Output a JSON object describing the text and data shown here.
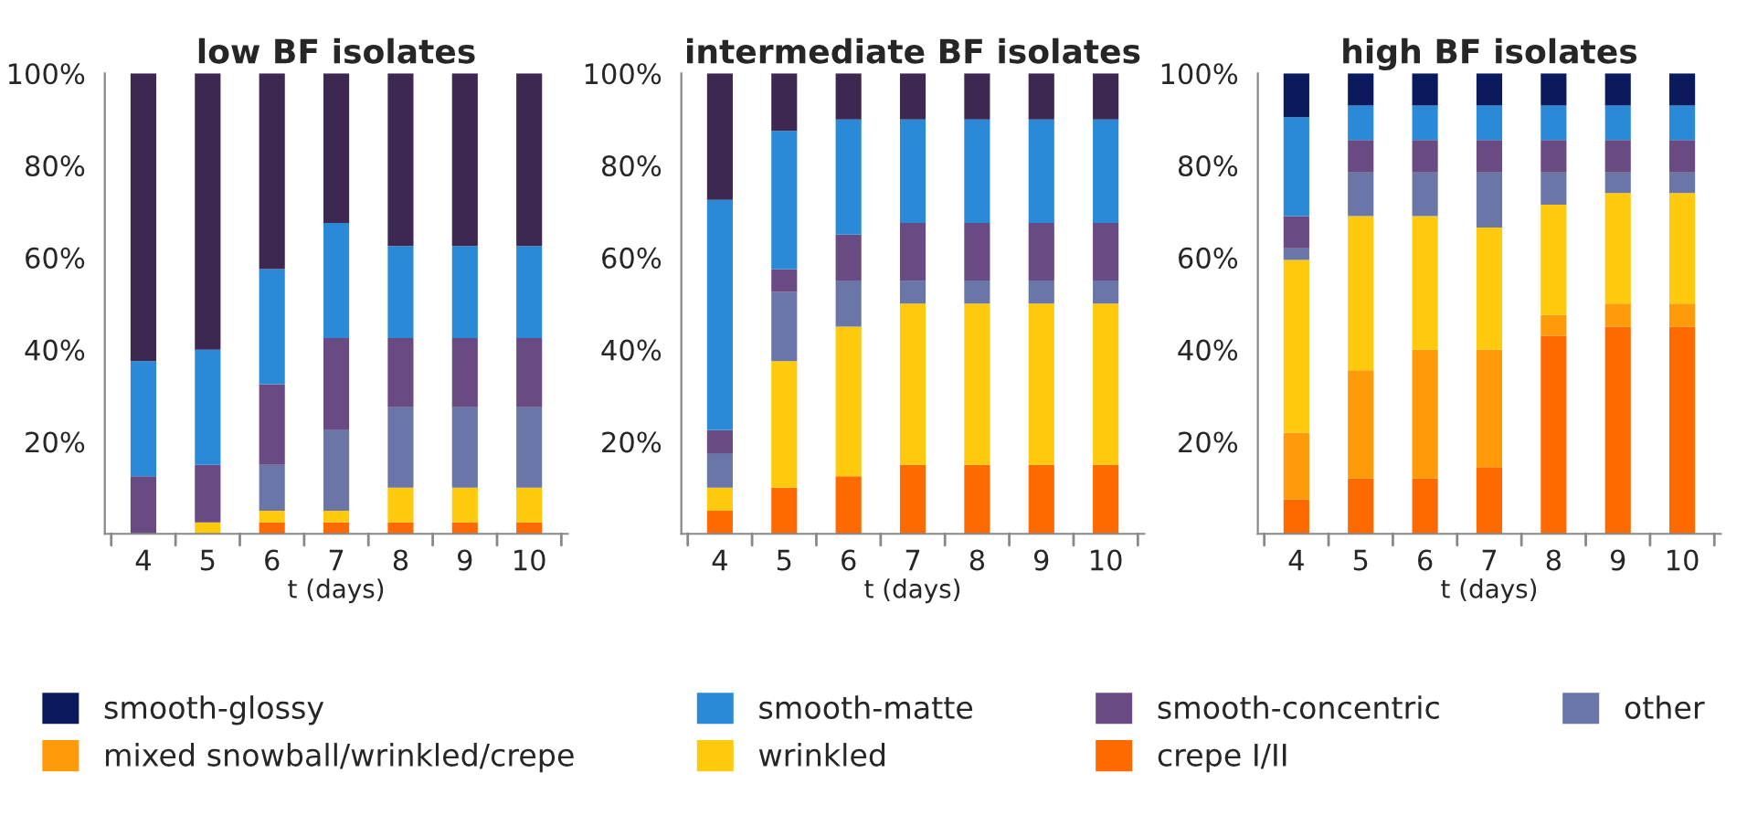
{
  "chart_data": [
    {
      "type": "bar",
      "title": "low BF isolates",
      "xlabel": "t (days)",
      "categories": [
        "4",
        "5",
        "6",
        "7",
        "8",
        "9",
        "10"
      ],
      "stacked": true,
      "ylim": [
        0,
        100
      ],
      "yticks": [
        {
          "value": 0,
          "label": null
        },
        {
          "value": 20,
          "label": "20%"
        },
        {
          "value": 40,
          "label": "40%"
        },
        {
          "value": 60,
          "label": "60%"
        },
        {
          "value": 80,
          "label": "80%"
        },
        {
          "value": 100,
          "label": "100%"
        }
      ],
      "grid": false,
      "series": [
        {
          "color": "#ff6a00",
          "values": [
            0,
            0,
            2.5,
            2.5,
            2.5,
            2.5,
            2.5
          ]
        },
        {
          "color": "#ff9a08",
          "values": [
            0,
            0,
            0,
            0,
            0,
            0,
            0
          ]
        },
        {
          "color": "#ffc90e",
          "values": [
            0,
            2.5,
            2.5,
            2.5,
            7.5,
            7.5,
            7.5
          ]
        },
        {
          "color": "#6a76a8",
          "values": [
            0,
            0,
            10,
            17.5,
            17.5,
            17.5,
            17.5
          ]
        },
        {
          "color": "#6a4a82",
          "values": [
            12.5,
            12.5,
            17.5,
            20,
            15,
            15,
            15
          ]
        },
        {
          "color": "#2a8ad8",
          "values": [
            25,
            25,
            25,
            25,
            20,
            20,
            20
          ]
        },
        {
          "color": "#3c2850",
          "values": [
            62.5,
            60,
            42.5,
            32.5,
            37.5,
            37.5,
            37.5
          ]
        }
      ]
    },
    {
      "type": "bar",
      "title": "intermediate BF isolates",
      "xlabel": "t (days)",
      "categories": [
        "4",
        "5",
        "6",
        "7",
        "8",
        "9",
        "10"
      ],
      "stacked": true,
      "ylim": [
        0,
        100
      ],
      "yticks": [
        {
          "value": 0,
          "label": null
        },
        {
          "value": 20,
          "label": "20%"
        },
        {
          "value": 40,
          "label": "40%"
        },
        {
          "value": 60,
          "label": "60%"
        },
        {
          "value": 80,
          "label": "80%"
        },
        {
          "value": 100,
          "label": "100%"
        }
      ],
      "grid": false,
      "series": [
        {
          "color": "#ff6a00",
          "values": [
            5,
            10,
            12.5,
            15,
            15,
            15,
            15
          ]
        },
        {
          "color": "#ff9a08",
          "values": [
            0,
            0,
            0,
            0,
            0,
            0,
            0
          ]
        },
        {
          "color": "#ffc90e",
          "values": [
            5,
            27.5,
            32.5,
            35,
            35,
            35,
            35
          ]
        },
        {
          "color": "#6a76a8",
          "values": [
            7.5,
            15,
            10,
            5,
            5,
            5,
            5
          ]
        },
        {
          "color": "#6a4a82",
          "values": [
            5,
            5,
            10,
            12.5,
            12.5,
            12.5,
            12.5
          ]
        },
        {
          "color": "#2a8ad8",
          "values": [
            50,
            30,
            25,
            22.5,
            22.5,
            22.5,
            22.5
          ]
        },
        {
          "color": "#3c2850",
          "values": [
            27.5,
            12.5,
            10,
            10,
            10,
            10,
            10
          ]
        }
      ]
    },
    {
      "type": "bar",
      "title": "high BF isolates",
      "xlabel": "t (days)",
      "categories": [
        "4",
        "5",
        "6",
        "7",
        "8",
        "9",
        "10"
      ],
      "stacked": true,
      "ylim": [
        0,
        100
      ],
      "yticks": [
        {
          "value": 0,
          "label": null
        },
        {
          "value": 20,
          "label": "20%"
        },
        {
          "value": 40,
          "label": "40%"
        },
        {
          "value": 60,
          "label": "60%"
        },
        {
          "value": 80,
          "label": "80%"
        },
        {
          "value": 100,
          "label": "100%"
        }
      ],
      "grid": false,
      "legend": "bottom",
      "series": [
        {
          "name": "crepe I/II",
          "color": "#ff6a00",
          "values": [
            7.5,
            12,
            12,
            14.5,
            43,
            45,
            45
          ]
        },
        {
          "name": "mixed snowball/wrinkled/crepe",
          "color": "#ff9a08",
          "values": [
            14.5,
            23.5,
            28,
            25.5,
            4.5,
            5,
            5
          ]
        },
        {
          "name": "wrinkled",
          "color": "#ffc90e",
          "values": [
            37.5,
            33.5,
            29,
            26.5,
            24,
            24,
            24
          ]
        },
        {
          "name": "other",
          "color": "#6a76a8",
          "values": [
            2.5,
            9.5,
            9.5,
            12,
            7,
            4.5,
            4.5
          ]
        },
        {
          "name": "smooth-concentric",
          "color": "#6a4a82",
          "values": [
            7,
            7,
            7,
            7,
            7,
            7,
            7
          ]
        },
        {
          "name": "smooth-matte",
          "color": "#2a8ad8",
          "values": [
            21.5,
            7.5,
            7.5,
            7.5,
            7.5,
            7.5,
            7.5
          ]
        },
        {
          "name": "smooth-glossy",
          "color": "#0b1a5c",
          "values": [
            9.5,
            7,
            7,
            7,
            7,
            7,
            7
          ]
        }
      ]
    }
  ]
}
